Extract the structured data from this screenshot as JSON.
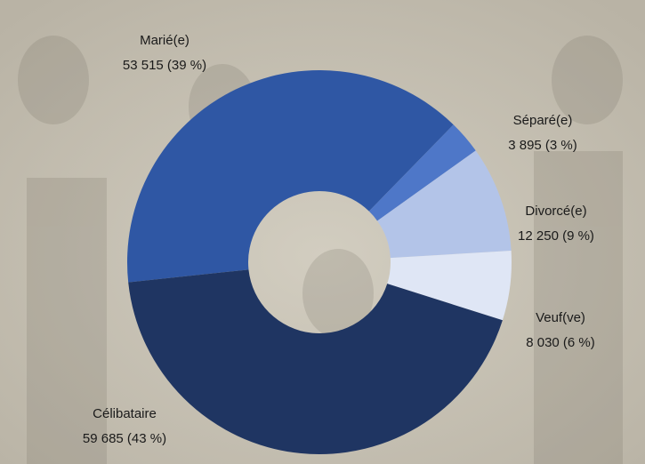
{
  "chart_data": {
    "type": "donut",
    "categories": [
      "Marié(e)",
      "Séparé(e)",
      "Divorcé(e)",
      "Veuf(ve)",
      "Célibataire"
    ],
    "values": [
      53515,
      3895,
      12250,
      8030,
      59685
    ],
    "value_labels": [
      "53 515 (39 %)",
      "3 895 (3 %)",
      "12 250 (9 %)",
      "8 030 (6 %)",
      "59 685 (43 %)"
    ],
    "colors": [
      "#2f57a4",
      "#4e77c8",
      "#b3c4e8",
      "#dfe6f5",
      "#1f3562"
    ]
  }
}
